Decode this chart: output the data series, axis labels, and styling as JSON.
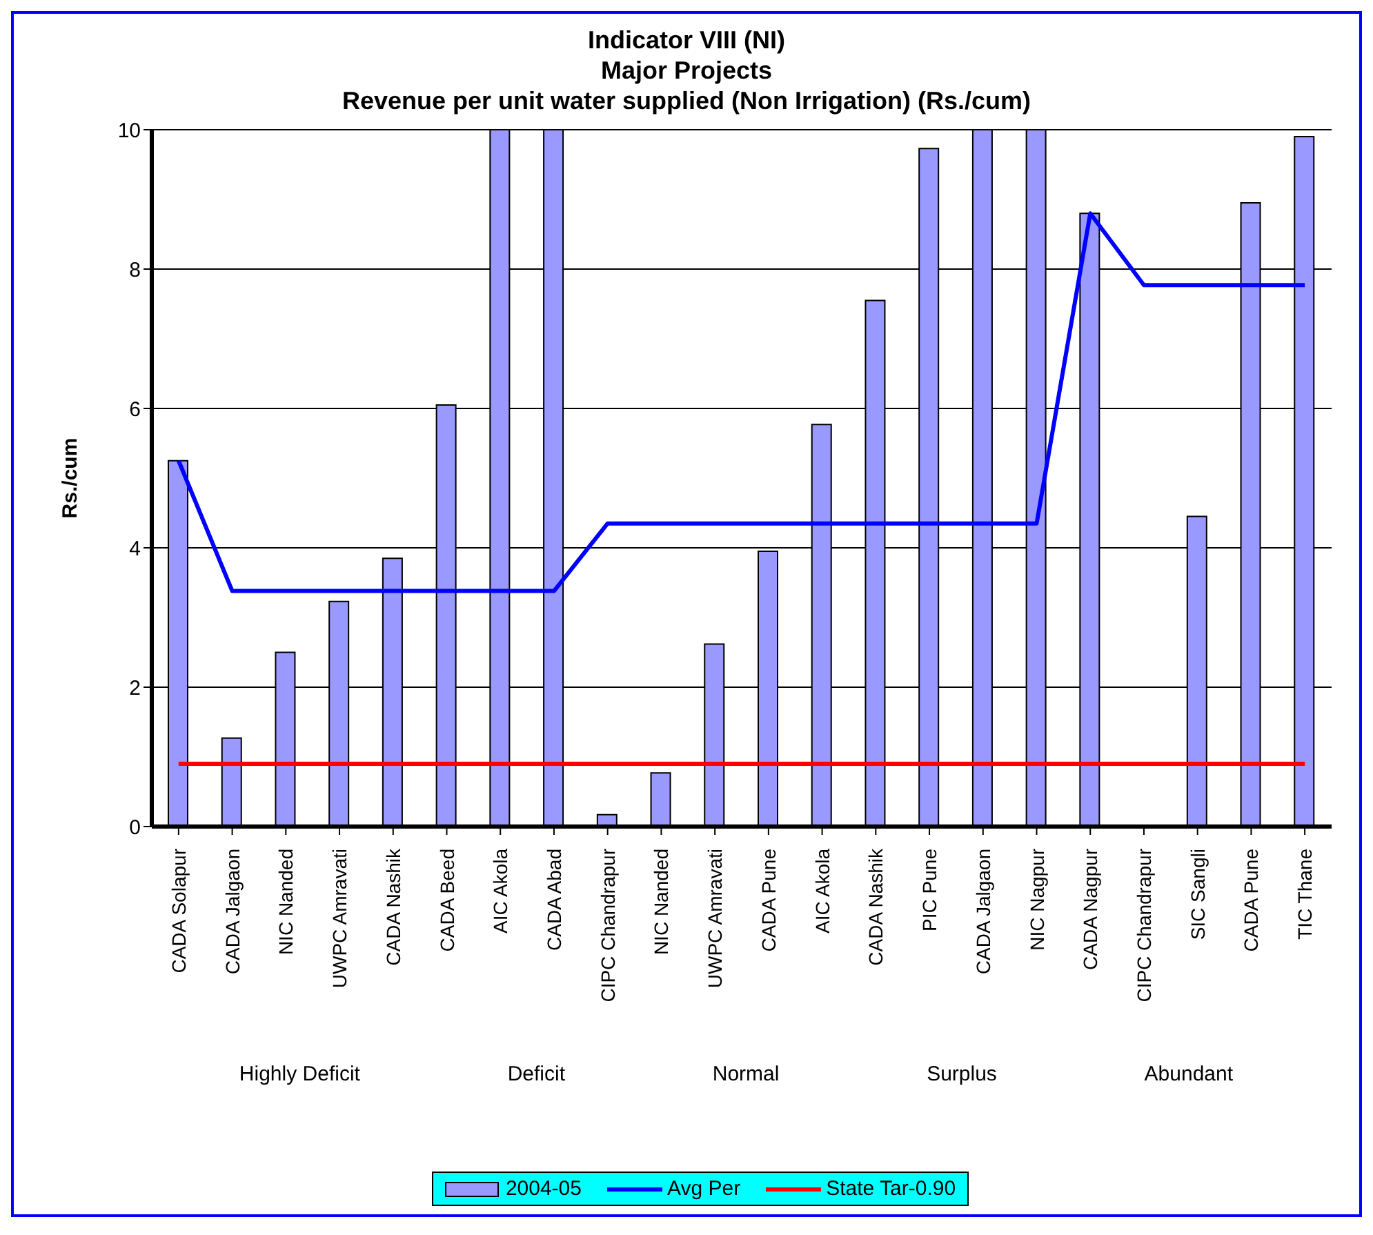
{
  "chart_data": {
    "type": "bar",
    "title": "Indicator VIII (NI)",
    "subtitle": "Major Projects\nRevenue per unit water supplied (Non Irrigation) (Rs./cum)",
    "ylabel": "Rs./cum",
    "categories": [
      "CADA Solapur",
      "CADA Jalgaon",
      "NIC Nanded",
      "UWPC Amravati",
      "CADA Nashik",
      "CADA Beed",
      "AIC Akola",
      "CADA Abad",
      "CIPC Chandrapur",
      "NIC Nanded",
      "UWPC Amravati",
      "CADA Pune",
      "AIC Akola",
      "CADA Nashik",
      "PIC Pune",
      "CADA Jalgaon",
      "NIC Nagpur",
      "CADA Nagpur",
      "CIPC Chandrapur",
      "SIC Sangli",
      "CADA Pune",
      "TIC Thane"
    ],
    "series": [
      {
        "name": "2004-05",
        "color": "#9999ff",
        "values": [
          5.25,
          1.27,
          2.5,
          3.23,
          3.85,
          6.05,
          10,
          10,
          0.17,
          0.77,
          2.62,
          3.95,
          5.77,
          7.55,
          9.73,
          10,
          10,
          8.8,
          0,
          4.45,
          8.95,
          9.9
        ]
      },
      {
        "name": "Avg Per",
        "type": "line",
        "color": "#0000ff",
        "values": [
          5.25,
          3.38,
          3.38,
          3.38,
          3.38,
          3.38,
          3.38,
          3.38,
          4.35,
          4.35,
          4.35,
          4.35,
          4.35,
          4.35,
          4.35,
          4.35,
          4.35,
          8.8,
          7.77,
          7.77,
          7.77,
          7.77
        ]
      },
      {
        "name": "State Tar-0.90",
        "type": "line",
        "color": "#ff0000",
        "values": [
          0.9,
          0.9,
          0.9,
          0.9,
          0.9,
          0.9,
          0.9,
          0.9,
          0.9,
          0.9,
          0.9,
          0.9,
          0.9,
          0.9,
          0.9,
          0.9,
          0.9,
          0.9,
          0.9,
          0.9,
          0.9,
          0.9
        ]
      }
    ],
    "annotations": [
      "Highly Deficit",
      "Deficit",
      "Normal",
      "Surplus",
      "Abundant"
    ],
    "ylim": [
      0,
      10
    ],
    "yticks": [
      0,
      2,
      4,
      6,
      8,
      10
    ],
    "grid": "y",
    "legend": "bottom",
    "marker": "none",
    "line_style": "solid"
  }
}
